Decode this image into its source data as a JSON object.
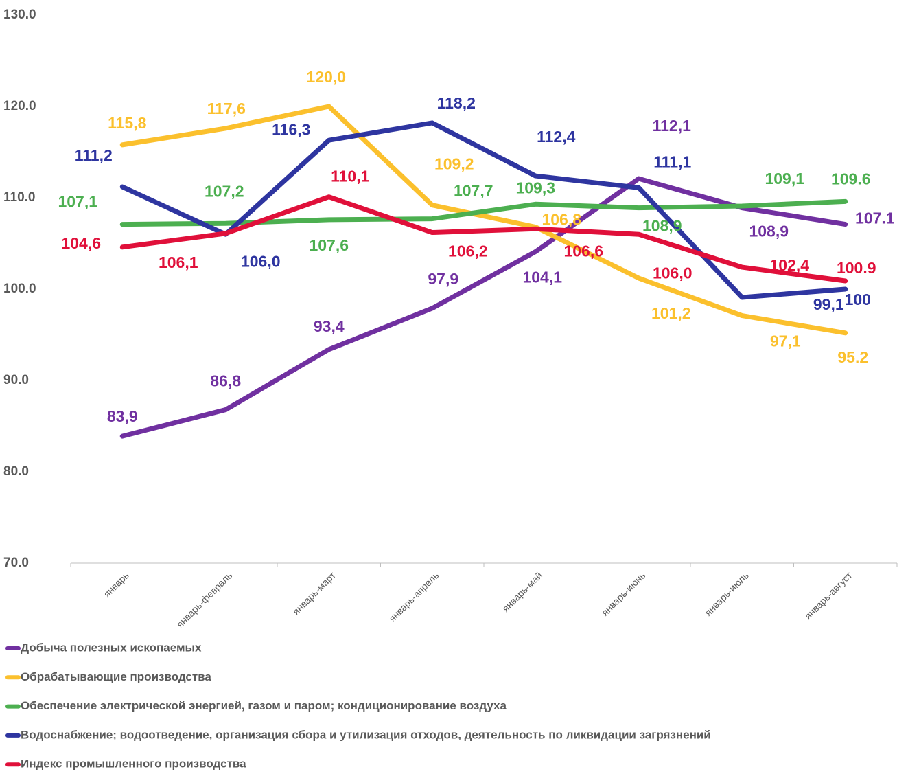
{
  "chart_data": {
    "type": "line",
    "categories": [
      "январь",
      "январь-февраль",
      "январь-март",
      "январь-апрель",
      "январь-май",
      "январь-июнь",
      "январь-июль",
      "январь-август"
    ],
    "ylim": [
      70,
      130
    ],
    "yticks": [
      {
        "value": 70,
        "label": "70.0"
      },
      {
        "value": 80,
        "label": "80.0"
      },
      {
        "value": 90,
        "label": "90.0"
      },
      {
        "value": 100,
        "label": "100.0"
      },
      {
        "value": 110,
        "label": "110.0"
      },
      {
        "value": 120,
        "label": "120.0"
      },
      {
        "value": 130,
        "label": "130.0"
      }
    ],
    "grid": false,
    "legend": "bottom",
    "series": [
      {
        "name": "Добыча полезных ископаемых",
        "color": "#7030a0",
        "values": [
          83.9,
          86.8,
          93.4,
          97.9,
          104.1,
          112.1,
          108.9,
          107.1
        ],
        "value_labels": [
          "83,9",
          "86,8",
          "93,4",
          "97,9",
          "104,1",
          "112,1",
          "108,9",
          "107.1"
        ]
      },
      {
        "name": "Обрабатывающие производства",
        "color": "#fbc02d",
        "values": [
          115.8,
          117.6,
          120.0,
          109.2,
          106.8,
          101.2,
          97.1,
          95.2
        ],
        "value_labels": [
          "115,8",
          "117,6",
          "120,0",
          "109,2",
          "106,8",
          "101,2",
          "97,1",
          "95.2"
        ]
      },
      {
        "name": "Обеспечение электрической энергией, газом и паром; кондиционирование воздуха",
        "color": "#4caf50",
        "values": [
          107.1,
          107.2,
          107.6,
          107.7,
          109.3,
          108.9,
          109.1,
          109.6
        ],
        "value_labels": [
          "107,1",
          "107,2",
          "107,6",
          "107,7",
          "109,3",
          "108,9",
          "109,1",
          "109.6"
        ]
      },
      {
        "name": "Водоснабжение; водоотведение, организация сбора и утилизация отходов, деятельность по ликвидации загрязнений",
        "color": "#2e35a0",
        "values": [
          111.2,
          106.0,
          116.3,
          118.2,
          112.4,
          111.1,
          99.1,
          100
        ],
        "value_labels": [
          "111,2",
          "106,0",
          "116,3",
          "118,2",
          "112,4",
          "111,1",
          "99,1",
          "100"
        ]
      },
      {
        "name": "Индекс промышленного производства",
        "color": "#e0103a",
        "values": [
          104.6,
          106.1,
          110.1,
          106.2,
          106.6,
          106.0,
          102.4,
          100.9
        ],
        "value_labels": [
          "104,6",
          "106,1",
          "110,1",
          "106,2",
          "106,6",
          "106,0",
          "102,4",
          "100.9"
        ]
      }
    ]
  }
}
